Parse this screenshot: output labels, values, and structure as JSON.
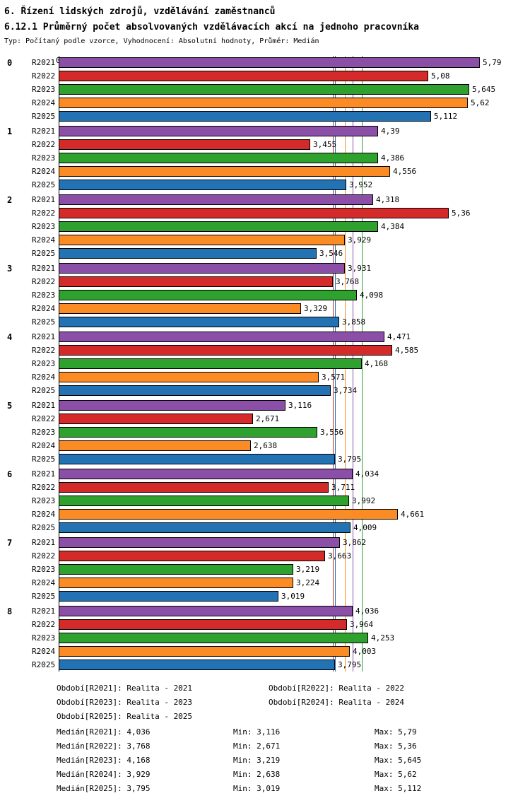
{
  "header": {
    "title": "6. Řízení lidských zdrojů, vzdělávání zaměstnanců",
    "subtitle": "6.12.1 Průměrný počet absolvovaných vzdělávacích akcí na jednoho pracovníka",
    "meta": "Typ: Počítaný podle vzorce, Vyhodnocení: Absolutní hodnoty, Průměr: Medián"
  },
  "chart_data": {
    "type": "bar",
    "orientation": "horizontal",
    "title": "6.12.1 Průměrný počet absolvovaných vzdělávacích akcí na jednoho pracovníka",
    "axis_origin_label": "0",
    "xlim": [
      0,
      6.45
    ],
    "grid": false,
    "series": [
      "R2021",
      "R2022",
      "R2023",
      "R2024",
      "R2025"
    ],
    "series_colors": {
      "R2021": "#8B4FA8",
      "R2022": "#D42A2A",
      "R2023": "#2FA12E",
      "R2024": "#FB8B24",
      "R2025": "#2272B4"
    },
    "groups": [
      {
        "label": "0",
        "bars": [
          {
            "series": "R2021",
            "value": 5.79,
            "display": "5,79"
          },
          {
            "series": "R2022",
            "value": 5.08,
            "display": "5,08"
          },
          {
            "series": "R2023",
            "value": 5.645,
            "display": "5,645"
          },
          {
            "series": "R2024",
            "value": 5.62,
            "display": "5,62"
          },
          {
            "series": "R2025",
            "value": 5.112,
            "display": "5,112"
          }
        ]
      },
      {
        "label": "1",
        "bars": [
          {
            "series": "R2021",
            "value": 4.39,
            "display": "4,39"
          },
          {
            "series": "R2022",
            "value": 3.455,
            "display": "3,455"
          },
          {
            "series": "R2023",
            "value": 4.386,
            "display": "4,386"
          },
          {
            "series": "R2024",
            "value": 4.556,
            "display": "4,556"
          },
          {
            "series": "R2025",
            "value": 3.952,
            "display": "3,952"
          }
        ]
      },
      {
        "label": "2",
        "bars": [
          {
            "series": "R2021",
            "value": 4.318,
            "display": "4,318"
          },
          {
            "series": "R2022",
            "value": 5.36,
            "display": "5,36"
          },
          {
            "series": "R2023",
            "value": 4.384,
            "display": "4,384"
          },
          {
            "series": "R2024",
            "value": 3.929,
            "display": "3,929"
          },
          {
            "series": "R2025",
            "value": 3.546,
            "display": "3,546"
          }
        ]
      },
      {
        "label": "3",
        "bars": [
          {
            "series": "R2021",
            "value": 3.931,
            "display": "3,931"
          },
          {
            "series": "R2022",
            "value": 3.768,
            "display": "3,768"
          },
          {
            "series": "R2023",
            "value": 4.098,
            "display": "4,098"
          },
          {
            "series": "R2024",
            "value": 3.329,
            "display": "3,329"
          },
          {
            "series": "R2025",
            "value": 3.858,
            "display": "3,858"
          }
        ]
      },
      {
        "label": "4",
        "bars": [
          {
            "series": "R2021",
            "value": 4.471,
            "display": "4,471"
          },
          {
            "series": "R2022",
            "value": 4.585,
            "display": "4,585"
          },
          {
            "series": "R2023",
            "value": 4.168,
            "display": "4,168"
          },
          {
            "series": "R2024",
            "value": 3.571,
            "display": "3,571"
          },
          {
            "series": "R2025",
            "value": 3.734,
            "display": "3,734"
          }
        ]
      },
      {
        "label": "5",
        "bars": [
          {
            "series": "R2021",
            "value": 3.116,
            "display": "3,116"
          },
          {
            "series": "R2022",
            "value": 2.671,
            "display": "2,671"
          },
          {
            "series": "R2023",
            "value": 3.556,
            "display": "3,556"
          },
          {
            "series": "R2024",
            "value": 2.638,
            "display": "2,638"
          },
          {
            "series": "R2025",
            "value": 3.795,
            "display": "3,795"
          }
        ]
      },
      {
        "label": "6",
        "bars": [
          {
            "series": "R2021",
            "value": 4.034,
            "display": "4,034"
          },
          {
            "series": "R2022",
            "value": 3.711,
            "display": "3,711"
          },
          {
            "series": "R2023",
            "value": 3.992,
            "display": "3,992"
          },
          {
            "series": "R2024",
            "value": 4.661,
            "display": "4,661"
          },
          {
            "series": "R2025",
            "value": 4.009,
            "display": "4,009"
          }
        ]
      },
      {
        "label": "7",
        "bars": [
          {
            "series": "R2021",
            "value": 3.862,
            "display": "3,862"
          },
          {
            "series": "R2022",
            "value": 3.663,
            "display": "3,663"
          },
          {
            "series": "R2023",
            "value": 3.219,
            "display": "3,219"
          },
          {
            "series": "R2024",
            "value": 3.224,
            "display": "3,224"
          },
          {
            "series": "R2025",
            "value": 3.019,
            "display": "3,019"
          }
        ]
      },
      {
        "label": "8",
        "bars": [
          {
            "series": "R2021",
            "value": 4.036,
            "display": "4,036"
          },
          {
            "series": "R2022",
            "value": 3.964,
            "display": "3,964"
          },
          {
            "series": "R2023",
            "value": 4.253,
            "display": "4,253"
          },
          {
            "series": "R2024",
            "value": 4.003,
            "display": "4,003"
          },
          {
            "series": "R2025",
            "value": 3.795,
            "display": "3,795"
          }
        ]
      }
    ],
    "median_lines": [
      {
        "series": "R2021",
        "value": 4.036
      },
      {
        "series": "R2022",
        "value": 3.768
      },
      {
        "series": "R2023",
        "value": 4.168
      },
      {
        "series": "R2024",
        "value": 3.929
      },
      {
        "series": "R2025",
        "value": 3.795
      }
    ]
  },
  "legend": {
    "rows": [
      [
        "Období[R2021]: Realita - 2021",
        "Období[R2022]: Realita - 2022"
      ],
      [
        "Období[R2023]: Realita - 2023",
        "Období[R2024]: Realita - 2024"
      ],
      [
        "Období[R2025]: Realita - 2025"
      ]
    ]
  },
  "stats": {
    "rows": [
      [
        "Medián[R2021]: 4,036",
        "Min: 3,116",
        "Max: 5,79"
      ],
      [
        "Medián[R2022]: 3,768",
        "Min: 2,671",
        "Max: 5,36"
      ],
      [
        "Medián[R2023]: 4,168",
        "Min: 3,219",
        "Max: 5,645"
      ],
      [
        "Medián[R2024]: 3,929",
        "Min: 2,638",
        "Max: 5,62"
      ],
      [
        "Medián[R2025]: 3,795",
        "Min: 3,019",
        "Max: 5,112"
      ]
    ]
  }
}
